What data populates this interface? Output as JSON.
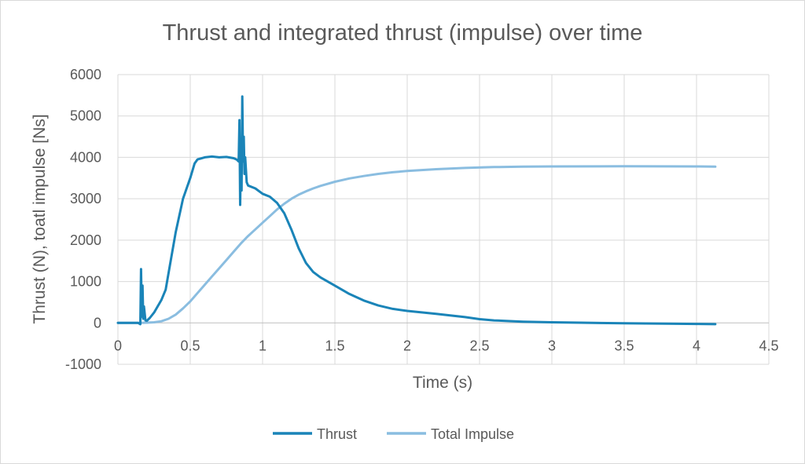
{
  "chart_data": {
    "type": "line",
    "title": "Thrust and integrated thrust (impulse) over time",
    "xlabel": "Time (s)",
    "ylabel": "Thrust (N), toatl impulse [Ns]",
    "xlim": [
      0,
      4.5
    ],
    "ylim": [
      -1000,
      6000
    ],
    "x_ticks": [
      "0",
      "0.5",
      "1",
      "1.5",
      "2",
      "2.5",
      "3",
      "3.5",
      "4",
      "4.5"
    ],
    "y_ticks": [
      "6000",
      "5000",
      "4000",
      "3000",
      "2000",
      "1000",
      "0",
      "-1000"
    ],
    "grid": true,
    "legend_position": "bottom",
    "series": [
      {
        "name": "Thrust",
        "color": "#1a84b8",
        "points": [
          [
            0,
            0
          ],
          [
            0.14,
            0
          ],
          [
            0.155,
            -30
          ],
          [
            0.16,
            1300
          ],
          [
            0.165,
            150
          ],
          [
            0.17,
            900
          ],
          [
            0.175,
            100
          ],
          [
            0.18,
            400
          ],
          [
            0.19,
            60
          ],
          [
            0.2,
            50
          ],
          [
            0.22,
            120
          ],
          [
            0.25,
            250
          ],
          [
            0.3,
            550
          ],
          [
            0.33,
            800
          ],
          [
            0.36,
            1400
          ],
          [
            0.4,
            2200
          ],
          [
            0.45,
            3000
          ],
          [
            0.5,
            3500
          ],
          [
            0.53,
            3850
          ],
          [
            0.55,
            3950
          ],
          [
            0.6,
            4000
          ],
          [
            0.65,
            4020
          ],
          [
            0.7,
            4000
          ],
          [
            0.75,
            4010
          ],
          [
            0.8,
            3980
          ],
          [
            0.82,
            3950
          ],
          [
            0.835,
            3900
          ],
          [
            0.84,
            4900
          ],
          [
            0.845,
            2850
          ],
          [
            0.85,
            4100
          ],
          [
            0.855,
            3200
          ],
          [
            0.86,
            5470
          ],
          [
            0.865,
            3900
          ],
          [
            0.87,
            4500
          ],
          [
            0.875,
            3600
          ],
          [
            0.88,
            4000
          ],
          [
            0.89,
            3400
          ],
          [
            0.9,
            3320
          ],
          [
            0.95,
            3250
          ],
          [
            1.0,
            3120
          ],
          [
            1.05,
            3050
          ],
          [
            1.1,
            2900
          ],
          [
            1.15,
            2650
          ],
          [
            1.2,
            2250
          ],
          [
            1.25,
            1800
          ],
          [
            1.3,
            1450
          ],
          [
            1.35,
            1230
          ],
          [
            1.4,
            1100
          ],
          [
            1.5,
            900
          ],
          [
            1.6,
            700
          ],
          [
            1.7,
            540
          ],
          [
            1.8,
            420
          ],
          [
            1.9,
            340
          ],
          [
            2.0,
            290
          ],
          [
            2.2,
            220
          ],
          [
            2.4,
            140
          ],
          [
            2.5,
            90
          ],
          [
            2.6,
            60
          ],
          [
            2.8,
            30
          ],
          [
            3.0,
            15
          ],
          [
            3.2,
            5
          ],
          [
            3.5,
            -10
          ],
          [
            3.8,
            -20
          ],
          [
            4.0,
            -25
          ],
          [
            4.13,
            -30
          ]
        ]
      },
      {
        "name": "Total Impulse",
        "color": "#8abde0",
        "points": [
          [
            0,
            0
          ],
          [
            0.15,
            0
          ],
          [
            0.2,
            5
          ],
          [
            0.25,
            15
          ],
          [
            0.3,
            40
          ],
          [
            0.35,
            100
          ],
          [
            0.4,
            200
          ],
          [
            0.45,
            350
          ],
          [
            0.5,
            520
          ],
          [
            0.55,
            720
          ],
          [
            0.6,
            920
          ],
          [
            0.65,
            1120
          ],
          [
            0.7,
            1320
          ],
          [
            0.75,
            1520
          ],
          [
            0.8,
            1720
          ],
          [
            0.85,
            1920
          ],
          [
            0.9,
            2100
          ],
          [
            0.95,
            2260
          ],
          [
            1.0,
            2420
          ],
          [
            1.05,
            2580
          ],
          [
            1.1,
            2740
          ],
          [
            1.15,
            2880
          ],
          [
            1.2,
            3000
          ],
          [
            1.25,
            3100
          ],
          [
            1.3,
            3180
          ],
          [
            1.35,
            3250
          ],
          [
            1.4,
            3310
          ],
          [
            1.5,
            3410
          ],
          [
            1.6,
            3490
          ],
          [
            1.7,
            3550
          ],
          [
            1.8,
            3600
          ],
          [
            1.9,
            3640
          ],
          [
            2.0,
            3670
          ],
          [
            2.2,
            3715
          ],
          [
            2.4,
            3745
          ],
          [
            2.6,
            3765
          ],
          [
            2.8,
            3775
          ],
          [
            3.0,
            3780
          ],
          [
            3.5,
            3785
          ],
          [
            4.0,
            3780
          ],
          [
            4.13,
            3775
          ]
        ]
      }
    ]
  }
}
